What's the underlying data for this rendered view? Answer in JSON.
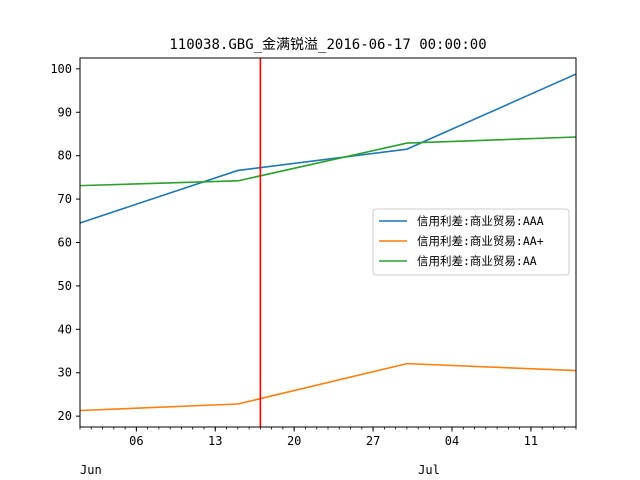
{
  "chart_data": {
    "type": "line",
    "title": "110038.GBG_金满锐溢_2016-06-17 00:00:00",
    "xlabel": "",
    "ylabel": "",
    "x_domain": [
      "2016-06-01",
      "2016-07-15"
    ],
    "ylim": [
      17.5,
      102.5
    ],
    "y_ticks": [
      20,
      30,
      40,
      50,
      60,
      70,
      80,
      90,
      100
    ],
    "x_major_ticks": [
      {
        "date": "2016-06-06",
        "label": "06"
      },
      {
        "date": "2016-06-13",
        "label": "13"
      },
      {
        "date": "2016-06-20",
        "label": "20"
      },
      {
        "date": "2016-06-27",
        "label": "27"
      },
      {
        "date": "2016-07-04",
        "label": "04"
      },
      {
        "date": "2016-07-11",
        "label": "11"
      }
    ],
    "x_month_labels": [
      {
        "date": "2016-06-01",
        "label": "Jun"
      },
      {
        "date": "2016-07-01",
        "label": "Jul"
      }
    ],
    "grid": false,
    "legend_position": "center-right",
    "vline": {
      "date": "2016-06-17",
      "color": "#ff0000"
    },
    "series": [
      {
        "name": "信用利差:商业贸易:AAA",
        "color": "#1f77b4",
        "points": [
          [
            "2016-06-01",
            64.5
          ],
          [
            "2016-06-15",
            76.6
          ],
          [
            "2016-06-30",
            81.5
          ],
          [
            "2016-07-15",
            98.8
          ]
        ]
      },
      {
        "name": "信用利差:商业贸易:AA+",
        "color": "#ff7f0e",
        "points": [
          [
            "2016-06-01",
            21.3
          ],
          [
            "2016-06-15",
            22.8
          ],
          [
            "2016-06-30",
            32.1
          ],
          [
            "2016-07-15",
            30.5
          ]
        ]
      },
      {
        "name": "信用利差:商业贸易:AA",
        "color": "#2ca02c",
        "points": [
          [
            "2016-06-01",
            73.1
          ],
          [
            "2016-06-15",
            74.2
          ],
          [
            "2016-06-30",
            82.9
          ],
          [
            "2016-07-15",
            84.3
          ]
        ]
      }
    ]
  }
}
